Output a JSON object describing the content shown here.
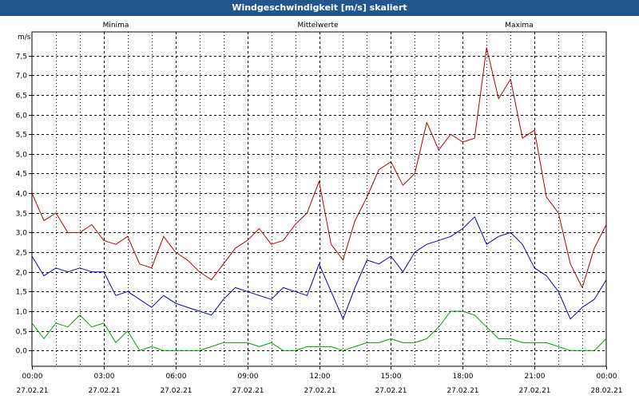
{
  "title": "Windgeschwindigkeit [m/s] skaliert",
  "colors": {
    "title_bar": "#22578e",
    "minima": "#00a000",
    "mittelwerte": "#0000c0",
    "maxima": "#b00000"
  },
  "chart_data": {
    "type": "line",
    "title": "Windgeschwindigkeit [m/s] skaliert",
    "ylabel": "m/s",
    "ylim": [
      -0.4,
      8.1
    ],
    "y_ticks": [
      "0,0",
      "0,5",
      "1,0",
      "1,5",
      "2,0",
      "2,5",
      "3,0",
      "3,5",
      "4,0",
      "4,5",
      "5,0",
      "5,5",
      "6,0",
      "6,5",
      "7,0",
      "7,5"
    ],
    "x_ticks": [
      {
        "time": "00:00",
        "date": "27.02.21"
      },
      {
        "time": "03:00",
        "date": "27.02.21"
      },
      {
        "time": "06:00",
        "date": "27.02.21"
      },
      {
        "time": "09:00",
        "date": "27.02.21"
      },
      {
        "time": "12:00",
        "date": "27.02.21"
      },
      {
        "time": "15:00",
        "date": "27.02.21"
      },
      {
        "time": "18:00",
        "date": "27.02.21"
      },
      {
        "time": "21:00",
        "date": "27.02.21"
      },
      {
        "time": "00:00",
        "date": "28.02.21"
      }
    ],
    "x_unit": "hours since 27.02.21 00:00",
    "xlim": [
      0,
      24
    ],
    "grid": true,
    "legend_position": "top",
    "series": [
      {
        "name": "Minima",
        "x": [
          0,
          0.5,
          1,
          1.5,
          2,
          2.5,
          3,
          3.5,
          4,
          4.5,
          5,
          5.5,
          6,
          6.5,
          7,
          7.5,
          8,
          8.5,
          9,
          9.5,
          10,
          10.5,
          11,
          11.5,
          12,
          12.5,
          13,
          13.5,
          14,
          14.5,
          15,
          15.5,
          16,
          16.5,
          17,
          17.5,
          18,
          18.5,
          19,
          19.5,
          20,
          20.5,
          21,
          21.5,
          22,
          22.5,
          23,
          23.5,
          24
        ],
        "y": [
          0.7,
          0.3,
          0.7,
          0.6,
          0.9,
          0.6,
          0.7,
          0.2,
          0.5,
          0.0,
          0.1,
          0.0,
          0.0,
          0.0,
          0.0,
          0.1,
          0.2,
          0.2,
          0.2,
          0.1,
          0.2,
          0.0,
          0.0,
          0.1,
          0.1,
          0.1,
          0.0,
          0.1,
          0.2,
          0.2,
          0.3,
          0.2,
          0.2,
          0.3,
          0.6,
          1.0,
          1.0,
          0.9,
          0.6,
          0.3,
          0.3,
          0.2,
          0.2,
          0.2,
          0.1,
          0.0,
          0.0,
          0.0,
          0.3
        ]
      },
      {
        "name": "Mittelwerte",
        "x": [
          0,
          0.5,
          1,
          1.5,
          2,
          2.5,
          3,
          3.5,
          4,
          4.5,
          5,
          5.5,
          6,
          6.5,
          7,
          7.5,
          8,
          8.5,
          9,
          9.5,
          10,
          10.5,
          11,
          11.5,
          12,
          12.5,
          13,
          13.5,
          14,
          14.5,
          15,
          15.5,
          16,
          16.5,
          17,
          17.5,
          18,
          18.5,
          19,
          19.5,
          20,
          20.5,
          21,
          21.5,
          22,
          22.5,
          23,
          23.5,
          24
        ],
        "y": [
          2.4,
          1.9,
          2.1,
          2.0,
          2.1,
          2.0,
          2.0,
          1.4,
          1.5,
          1.3,
          1.1,
          1.4,
          1.2,
          1.1,
          1.0,
          0.9,
          1.3,
          1.6,
          1.5,
          1.4,
          1.3,
          1.6,
          1.5,
          1.4,
          2.2,
          1.5,
          0.8,
          1.6,
          2.3,
          2.2,
          2.4,
          2.0,
          2.5,
          2.7,
          2.8,
          2.9,
          3.1,
          3.4,
          2.7,
          2.9,
          3.0,
          2.7,
          2.1,
          1.9,
          1.5,
          0.8,
          1.1,
          1.3,
          1.8
        ]
      },
      {
        "name": "Maxima",
        "x": [
          0,
          0.5,
          1,
          1.5,
          2,
          2.5,
          3,
          3.5,
          4,
          4.5,
          5,
          5.5,
          6,
          6.5,
          7,
          7.5,
          8,
          8.5,
          9,
          9.5,
          10,
          10.5,
          11,
          11.5,
          12,
          12.5,
          13,
          13.5,
          14,
          14.5,
          15,
          15.5,
          16,
          16.5,
          17,
          17.5,
          18,
          18.5,
          19,
          19.5,
          20,
          20.5,
          21,
          21.5,
          22,
          22.5,
          23,
          23.5,
          24
        ],
        "y": [
          4.0,
          3.3,
          3.5,
          3.0,
          3.0,
          3.2,
          2.8,
          2.7,
          2.9,
          2.2,
          2.1,
          2.9,
          2.5,
          2.3,
          2.0,
          1.8,
          2.2,
          2.6,
          2.8,
          3.1,
          2.7,
          2.8,
          3.2,
          3.5,
          4.3,
          2.7,
          2.3,
          3.3,
          3.9,
          4.6,
          4.8,
          4.2,
          4.5,
          5.8,
          5.1,
          5.5,
          5.3,
          5.4,
          7.7,
          6.4,
          6.9,
          5.4,
          5.6,
          3.9,
          3.5,
          2.2,
          1.6,
          2.6,
          3.2
        ]
      }
    ]
  }
}
